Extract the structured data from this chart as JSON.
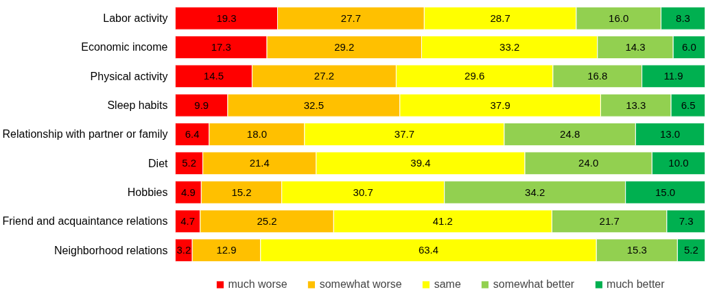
{
  "chart_data": {
    "type": "bar",
    "orientation": "horizontal",
    "stacked": true,
    "legend": "bottom",
    "tick_labels": "y",
    "xlim": [
      0,
      100
    ],
    "categories": [
      "Labor activity",
      "Economic income",
      "Physical activity",
      "Sleep habits",
      "Relationship with partner or family",
      "Diet",
      "Hobbies",
      "Friend and acquaintance relations",
      "Neighborhood relations"
    ],
    "series": [
      {
        "name": "much worse",
        "color": "#ff0000",
        "values": [
          19.3,
          17.3,
          14.5,
          9.9,
          6.4,
          5.2,
          4.9,
          4.7,
          3.2
        ],
        "value_labels": [
          "19.3",
          "17.3",
          "14.5",
          "9.9",
          "6.4",
          "5.2",
          "4.9",
          "4.7",
          "3.2"
        ]
      },
      {
        "name": "somewhat worse",
        "color": "#ffc000",
        "values": [
          27.7,
          29.2,
          27.2,
          32.5,
          18.0,
          21.4,
          15.2,
          25.2,
          12.9
        ],
        "value_labels": [
          "27.7",
          "29.2",
          "27.2",
          "32.5",
          "18.0",
          "21.4",
          "15.2",
          "25.2",
          "12.9"
        ]
      },
      {
        "name": "same",
        "color": "#ffff00",
        "values": [
          28.7,
          33.2,
          29.6,
          37.9,
          37.7,
          39.4,
          30.7,
          41.2,
          63.4
        ],
        "value_labels": [
          "28.7",
          "33.2",
          "29.6",
          "37.9",
          "37.7",
          "39.4",
          "30.7",
          "41.2",
          "63.4"
        ]
      },
      {
        "name": "somewhat better",
        "color": "#92d050",
        "values": [
          16.0,
          14.3,
          16.8,
          13.3,
          24.8,
          24.0,
          34.2,
          21.7,
          15.3
        ],
        "value_labels": [
          "16.0",
          "14.3",
          "16.8",
          "13.3",
          "24.8",
          "24.0",
          "34.2",
          "21.7",
          "15.3"
        ]
      },
      {
        "name": "much better",
        "color": "#00b050",
        "values": [
          8.3,
          6.0,
          11.9,
          6.5,
          13.0,
          10.0,
          15.0,
          7.3,
          5.2
        ],
        "value_labels": [
          "8.3",
          "6.0",
          "11.9",
          "6.5",
          "13.0",
          "10.0",
          "15.0",
          "7.3",
          "5.2"
        ]
      }
    ]
  }
}
